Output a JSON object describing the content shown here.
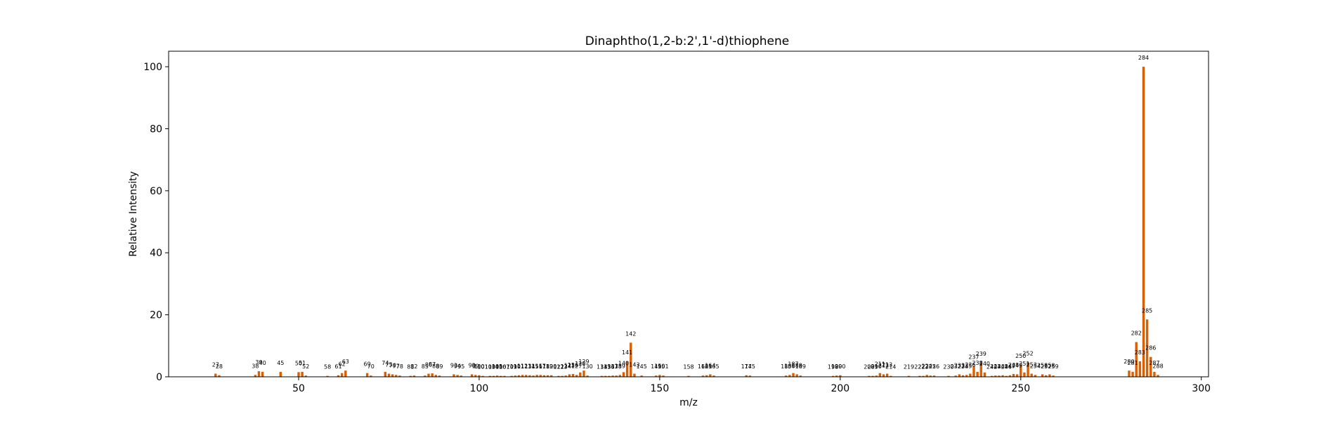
{
  "chart_data": {
    "type": "bar",
    "title": "Dinaphtho(1,2-b:2',1'-d)thiophene",
    "xlabel": "m/z",
    "ylabel": "Relative Intensity",
    "xlim": [
      14,
      302
    ],
    "ylim": [
      0,
      105
    ],
    "xticks": [
      50,
      100,
      150,
      200,
      250,
      300
    ],
    "yticks": [
      0,
      20,
      40,
      60,
      80,
      100
    ],
    "grid": false,
    "color": "#d95f02",
    "points": [
      {
        "x": 27,
        "y": 1.0
      },
      {
        "x": 28,
        "y": 0.5
      },
      {
        "x": 38,
        "y": 0.6
      },
      {
        "x": 39,
        "y": 1.8
      },
      {
        "x": 40,
        "y": 1.6
      },
      {
        "x": 45,
        "y": 1.6
      },
      {
        "x": 50,
        "y": 1.5
      },
      {
        "x": 51,
        "y": 1.6
      },
      {
        "x": 52,
        "y": 0.4
      },
      {
        "x": 58,
        "y": 0.3
      },
      {
        "x": 61,
        "y": 0.5
      },
      {
        "x": 62,
        "y": 1.2
      },
      {
        "x": 63,
        "y": 2.0
      },
      {
        "x": 69,
        "y": 1.2
      },
      {
        "x": 70,
        "y": 0.4
      },
      {
        "x": 74,
        "y": 1.6
      },
      {
        "x": 75,
        "y": 1.0
      },
      {
        "x": 76,
        "y": 0.8
      },
      {
        "x": 77,
        "y": 0.6
      },
      {
        "x": 78,
        "y": 0.4
      },
      {
        "x": 81,
        "y": 0.3
      },
      {
        "x": 82,
        "y": 0.4
      },
      {
        "x": 85,
        "y": 0.4
      },
      {
        "x": 86,
        "y": 1.0
      },
      {
        "x": 87,
        "y": 1.1
      },
      {
        "x": 88,
        "y": 0.6
      },
      {
        "x": 89,
        "y": 0.4
      },
      {
        "x": 93,
        "y": 0.8
      },
      {
        "x": 94,
        "y": 0.6
      },
      {
        "x": 95,
        "y": 0.4
      },
      {
        "x": 98,
        "y": 0.8
      },
      {
        "x": 99,
        "y": 0.6
      },
      {
        "x": 100,
        "y": 0.5
      },
      {
        "x": 101,
        "y": 0.3
      },
      {
        "x": 103,
        "y": 0.3
      },
      {
        "x": 104,
        "y": 0.3
      },
      {
        "x": 105,
        "y": 0.4
      },
      {
        "x": 106,
        "y": 0.3
      },
      {
        "x": 107,
        "y": 0.3
      },
      {
        "x": 109,
        "y": 0.3
      },
      {
        "x": 110,
        "y": 0.4
      },
      {
        "x": 111,
        "y": 0.5
      },
      {
        "x": 112,
        "y": 0.6
      },
      {
        "x": 113,
        "y": 0.6
      },
      {
        "x": 114,
        "y": 0.5
      },
      {
        "x": 115,
        "y": 0.4
      },
      {
        "x": 116,
        "y": 0.6
      },
      {
        "x": 117,
        "y": 0.6
      },
      {
        "x": 118,
        "y": 0.5
      },
      {
        "x": 119,
        "y": 0.5
      },
      {
        "x": 120,
        "y": 0.5
      },
      {
        "x": 122,
        "y": 0.3
      },
      {
        "x": 123,
        "y": 0.3
      },
      {
        "x": 124,
        "y": 0.4
      },
      {
        "x": 125,
        "y": 0.8
      },
      {
        "x": 126,
        "y": 0.9
      },
      {
        "x": 127,
        "y": 0.6
      },
      {
        "x": 128,
        "y": 1.4
      },
      {
        "x": 129,
        "y": 2.0
      },
      {
        "x": 130,
        "y": 0.4
      },
      {
        "x": 134,
        "y": 0.3
      },
      {
        "x": 135,
        "y": 0.3
      },
      {
        "x": 136,
        "y": 0.3
      },
      {
        "x": 137,
        "y": 0.4
      },
      {
        "x": 138,
        "y": 0.4
      },
      {
        "x": 139,
        "y": 0.6
      },
      {
        "x": 140,
        "y": 1.5
      },
      {
        "x": 141,
        "y": 5.0
      },
      {
        "x": 142,
        "y": 11.0
      },
      {
        "x": 143,
        "y": 1.0
      },
      {
        "x": 145,
        "y": 0.4
      },
      {
        "x": 149,
        "y": 0.4
      },
      {
        "x": 150,
        "y": 0.6
      },
      {
        "x": 151,
        "y": 0.4
      },
      {
        "x": 158,
        "y": 0.3
      },
      {
        "x": 162,
        "y": 0.4
      },
      {
        "x": 163,
        "y": 0.5
      },
      {
        "x": 164,
        "y": 0.8
      },
      {
        "x": 165,
        "y": 0.4
      },
      {
        "x": 174,
        "y": 0.5
      },
      {
        "x": 175,
        "y": 0.4
      },
      {
        "x": 185,
        "y": 0.4
      },
      {
        "x": 186,
        "y": 0.6
      },
      {
        "x": 187,
        "y": 1.2
      },
      {
        "x": 188,
        "y": 0.8
      },
      {
        "x": 189,
        "y": 0.4
      },
      {
        "x": 198,
        "y": 0.3
      },
      {
        "x": 199,
        "y": 0.4
      },
      {
        "x": 200,
        "y": 0.5
      },
      {
        "x": 208,
        "y": 0.3
      },
      {
        "x": 209,
        "y": 0.3
      },
      {
        "x": 210,
        "y": 0.4
      },
      {
        "x": 211,
        "y": 1.2
      },
      {
        "x": 212,
        "y": 0.8
      },
      {
        "x": 213,
        "y": 1.0
      },
      {
        "x": 214,
        "y": 0.3
      },
      {
        "x": 219,
        "y": 0.3
      },
      {
        "x": 222,
        "y": 0.3
      },
      {
        "x": 223,
        "y": 0.3
      },
      {
        "x": 224,
        "y": 0.6
      },
      {
        "x": 225,
        "y": 0.4
      },
      {
        "x": 226,
        "y": 0.4
      },
      {
        "x": 230,
        "y": 0.3
      },
      {
        "x": 232,
        "y": 0.4
      },
      {
        "x": 233,
        "y": 0.8
      },
      {
        "x": 234,
        "y": 0.5
      },
      {
        "x": 235,
        "y": 0.6
      },
      {
        "x": 236,
        "y": 1.0
      },
      {
        "x": 237,
        "y": 3.5
      },
      {
        "x": 238,
        "y": 1.6
      },
      {
        "x": 239,
        "y": 4.5
      },
      {
        "x": 240,
        "y": 1.4
      },
      {
        "x": 242,
        "y": 0.3
      },
      {
        "x": 243,
        "y": 0.4
      },
      {
        "x": 244,
        "y": 0.4
      },
      {
        "x": 245,
        "y": 0.5
      },
      {
        "x": 246,
        "y": 0.3
      },
      {
        "x": 247,
        "y": 0.5
      },
      {
        "x": 248,
        "y": 0.9
      },
      {
        "x": 249,
        "y": 0.8
      },
      {
        "x": 250,
        "y": 3.8
      },
      {
        "x": 251,
        "y": 1.4
      },
      {
        "x": 252,
        "y": 4.6
      },
      {
        "x": 253,
        "y": 1.0
      },
      {
        "x": 254,
        "y": 0.6
      },
      {
        "x": 256,
        "y": 0.8
      },
      {
        "x": 257,
        "y": 0.5
      },
      {
        "x": 258,
        "y": 0.8
      },
      {
        "x": 259,
        "y": 0.4
      },
      {
        "x": 280,
        "y": 2.0
      },
      {
        "x": 281,
        "y": 1.6
      },
      {
        "x": 282,
        "y": 11.2
      },
      {
        "x": 283,
        "y": 5.0
      },
      {
        "x": 284,
        "y": 100.0
      },
      {
        "x": 285,
        "y": 18.5
      },
      {
        "x": 286,
        "y": 6.4
      },
      {
        "x": 287,
        "y": 1.6
      },
      {
        "x": 288,
        "y": 0.6
      }
    ]
  }
}
